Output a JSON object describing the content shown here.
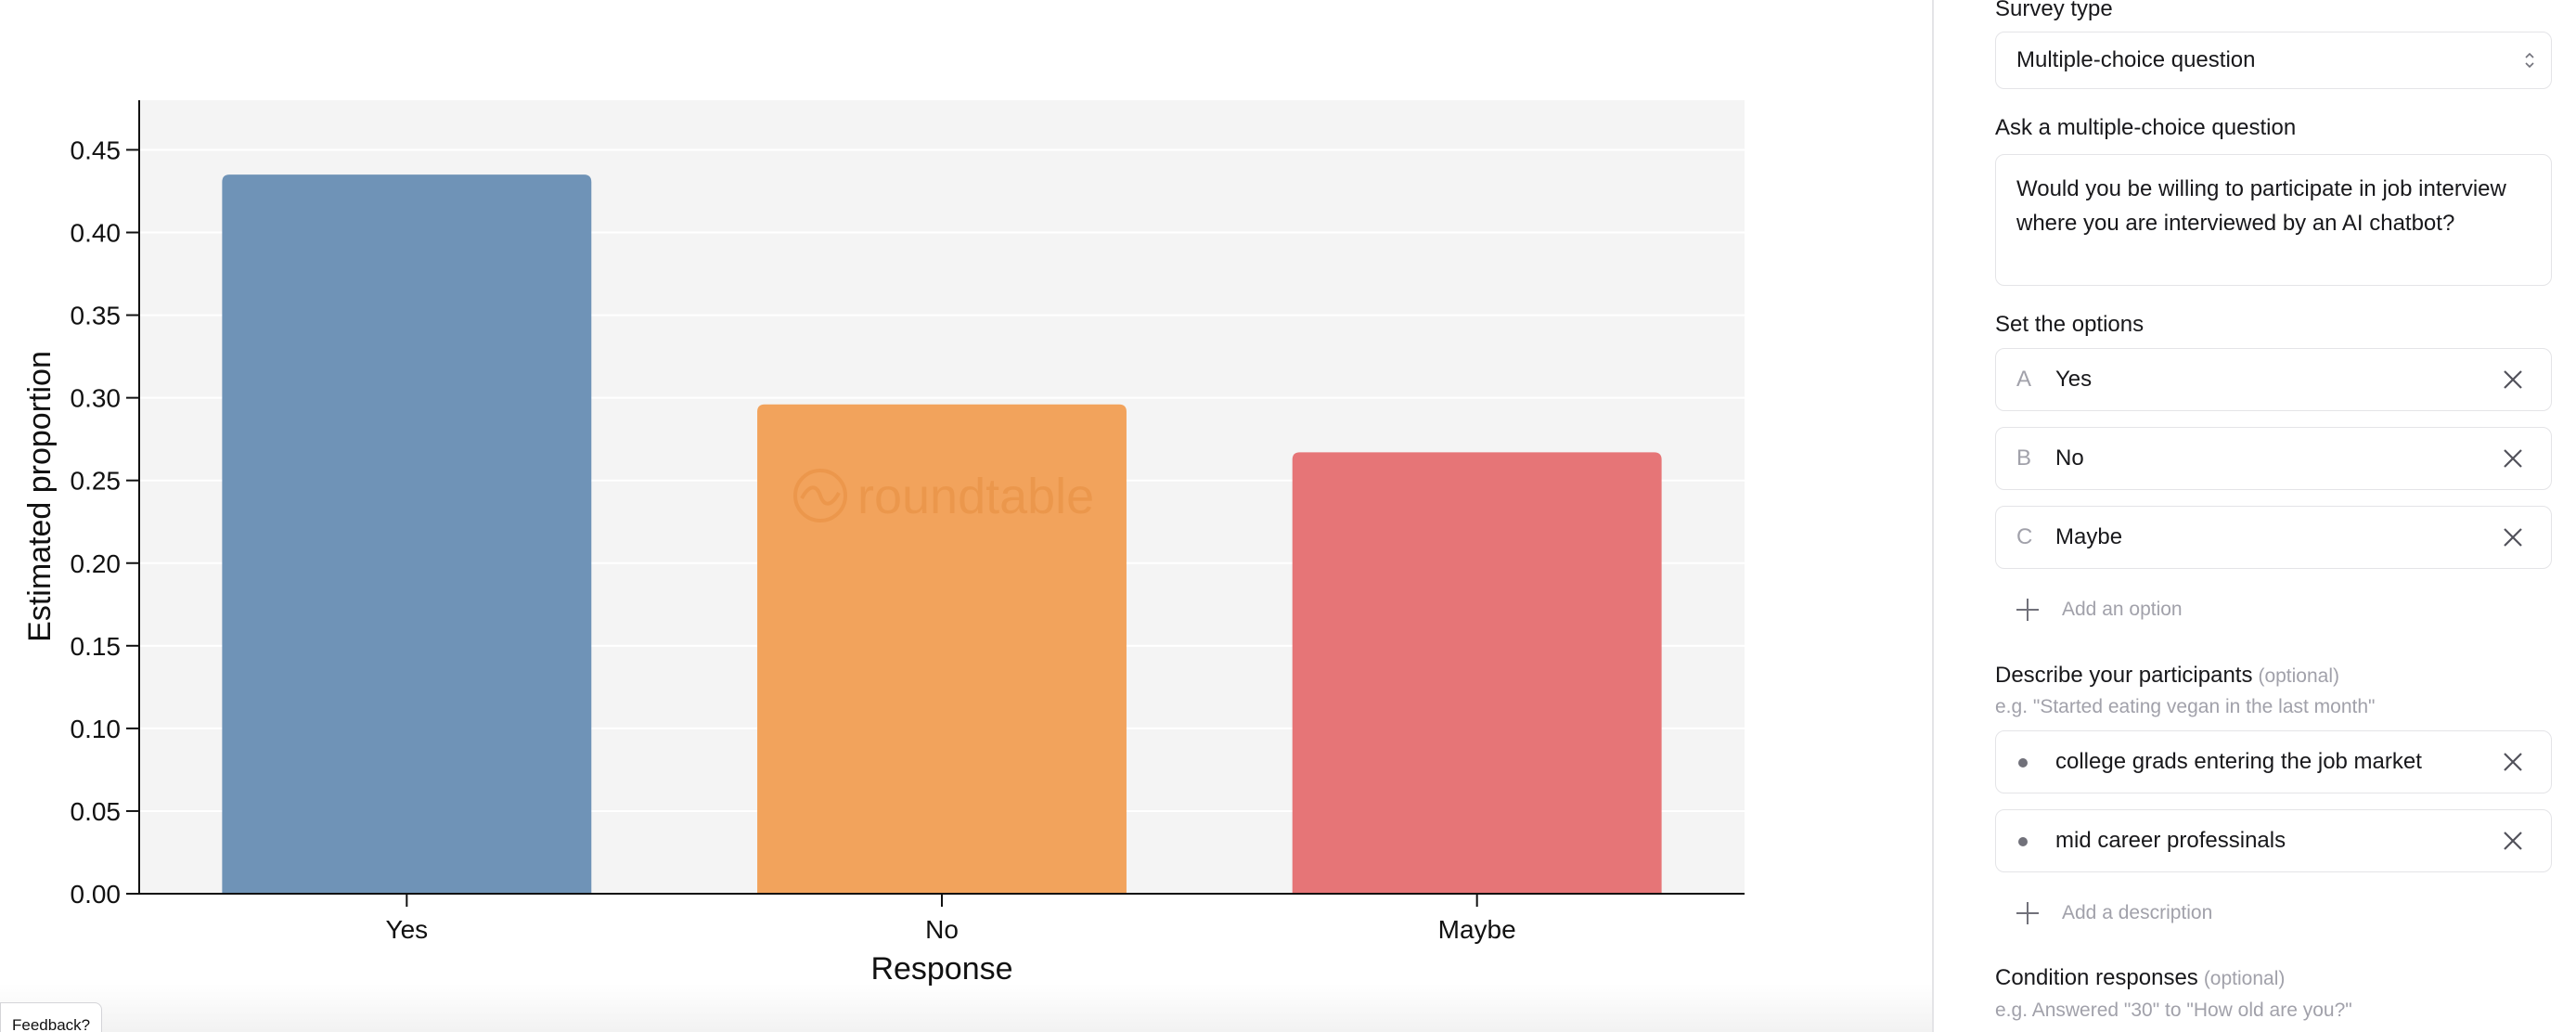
{
  "chart_data": {
    "type": "bar",
    "categories": [
      "Yes",
      "No",
      "Maybe"
    ],
    "values": [
      0.435,
      0.296,
      0.267
    ],
    "colors": [
      "#6f93b7",
      "#f2a35c",
      "#e67577"
    ],
    "xlabel": "Response",
    "ylabel": "Estimated proportion",
    "ylim": [
      0,
      0.48
    ],
    "yticks": [
      "0.00",
      "0.05",
      "0.10",
      "0.15",
      "0.20",
      "0.25",
      "0.30",
      "0.35",
      "0.40",
      "0.45"
    ],
    "grid": true,
    "legend": "none"
  },
  "watermark": "roundtable",
  "feedback_label": "Feedback?",
  "panel": {
    "survey_type": {
      "label": "Survey type",
      "value": "Multiple-choice question"
    },
    "question": {
      "label": "Ask a multiple-choice question",
      "value": "Would you be willing to participate in job interview where you are interviewed by an AI chatbot?"
    },
    "options": {
      "label": "Set the options",
      "items": [
        {
          "letter": "A",
          "text": "Yes"
        },
        {
          "letter": "B",
          "text": "No"
        },
        {
          "letter": "C",
          "text": "Maybe"
        }
      ],
      "add_label": "Add an option"
    },
    "participants": {
      "label": "Describe your participants",
      "optional": "(optional)",
      "hint": "e.g. \"Started eating vegan in the last month\"",
      "items": [
        "college grads entering the job market",
        "mid career professinals"
      ],
      "add_label": "Add a description"
    },
    "condition": {
      "label": "Condition responses",
      "optional": "(optional)",
      "hint": "e.g. Answered \"30\" to \"How old are you?\""
    }
  }
}
